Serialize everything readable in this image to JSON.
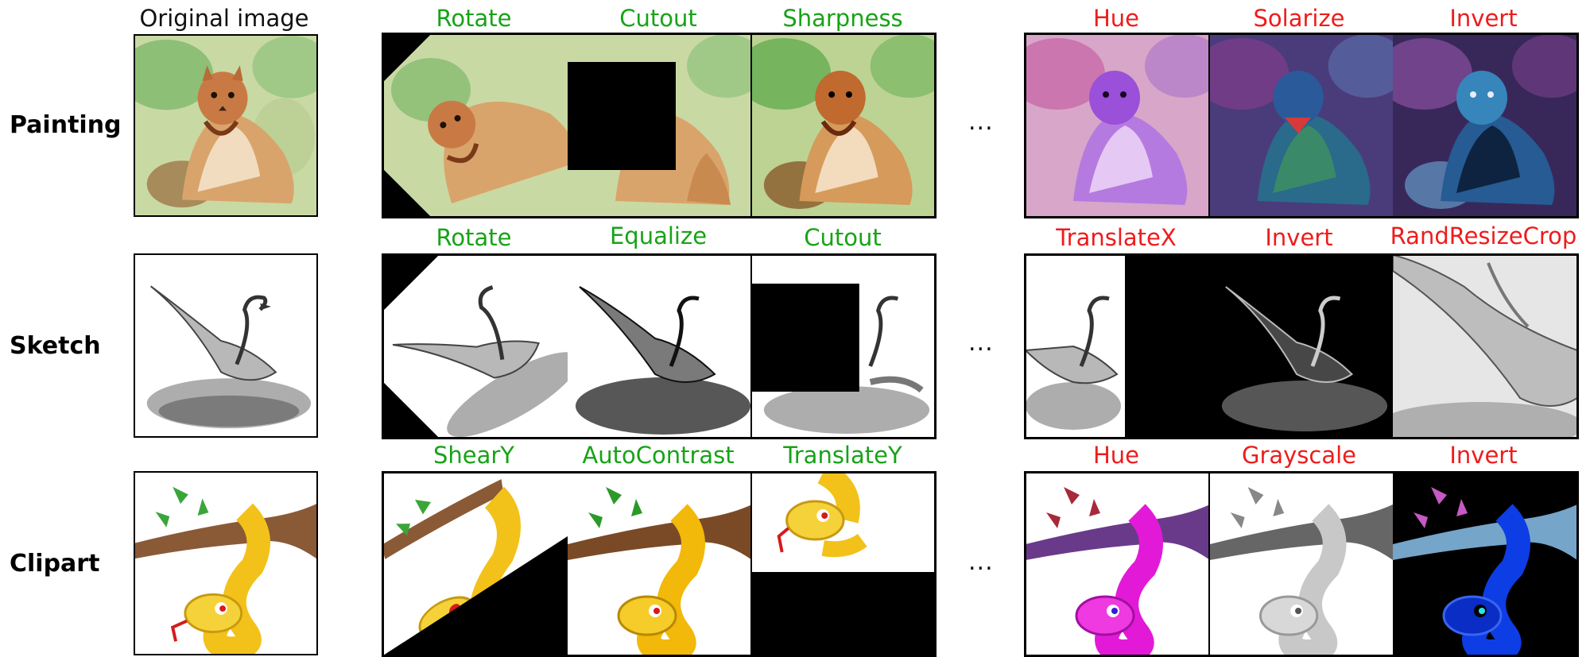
{
  "header": {
    "original_label": "Original image"
  },
  "ellipsis": "...",
  "rows": [
    {
      "name": "Painting",
      "subject": "squirrel",
      "weak": [
        "Rotate",
        "Cutout",
        "Sharpness"
      ],
      "strong": [
        "Hue",
        "Solarize",
        "Invert"
      ]
    },
    {
      "name": "Sketch",
      "subject": "swan",
      "weak": [
        "Rotate",
        "Equalize",
        "Cutout"
      ],
      "strong": [
        "TranslateX",
        "Invert",
        "RandResizeCrop"
      ]
    },
    {
      "name": "Clipart",
      "subject": "snake",
      "weak": [
        "ShearY",
        "AutoContrast",
        "TranslateY"
      ],
      "strong": [
        "Hue",
        "Grayscale",
        "Invert"
      ]
    }
  ],
  "colors": {
    "weak_label": "#17a317",
    "strong_label": "#ee1c1c"
  }
}
